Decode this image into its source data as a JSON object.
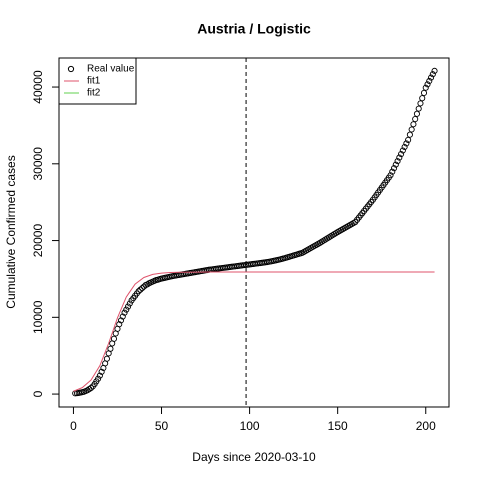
{
  "chart_data": {
    "type": "scatter",
    "title": "Austria / Logistic",
    "x_label": "Days since 2020-03-10",
    "y_label": "Cumulative Confirmed cases",
    "xlim": [
      -8.2,
      213.2
    ],
    "ylim": [
      -1684,
      43784
    ],
    "xticks": [
      0,
      50,
      100,
      150,
      200
    ],
    "yticks": [
      0,
      10000,
      20000,
      30000,
      40000
    ],
    "vline": 98,
    "legend": "top-left",
    "series": [
      {
        "name": "Real value",
        "color": "#000000",
        "marker": "circle",
        "x": [
          1,
          2,
          3,
          4,
          5,
          6,
          7,
          8,
          9,
          10,
          11,
          12,
          13,
          14,
          15,
          16,
          17,
          18,
          19,
          20,
          21,
          22,
          23,
          24,
          25,
          26,
          27,
          28,
          29,
          30,
          31,
          32,
          33,
          34,
          35,
          36,
          37,
          38,
          39,
          40,
          41,
          42,
          43,
          44,
          45,
          46,
          47,
          48,
          49,
          50,
          51,
          52,
          53,
          54,
          55,
          56,
          57,
          58,
          59,
          60,
          61,
          62,
          63,
          64,
          65,
          66,
          67,
          68,
          69,
          70,
          71,
          72,
          73,
          74,
          75,
          76,
          77,
          78,
          79,
          80,
          81,
          82,
          83,
          84,
          85,
          86,
          87,
          88,
          89,
          90,
          91,
          92,
          93,
          94,
          95,
          96,
          97,
          98,
          99,
          100,
          101,
          102,
          103,
          104,
          105,
          106,
          107,
          108,
          109,
          110,
          111,
          112,
          113,
          114,
          115,
          116,
          117,
          118,
          119,
          120,
          121,
          122,
          123,
          124,
          125,
          126,
          127,
          128,
          129,
          130,
          131,
          132,
          133,
          134,
          135,
          136,
          137,
          138,
          139,
          140,
          141,
          142,
          143,
          144,
          145,
          146,
          147,
          148,
          149,
          150,
          151,
          152,
          153,
          154,
          155,
          156,
          157,
          158,
          159,
          160,
          161,
          162,
          163,
          164,
          165,
          166,
          167,
          168,
          169,
          170,
          171,
          172,
          173,
          174,
          175,
          176,
          177,
          178,
          179,
          180,
          181,
          182,
          183,
          184,
          185,
          186,
          187,
          188,
          189,
          190,
          191,
          192,
          193,
          194,
          195,
          196,
          197,
          198,
          199,
          200,
          201,
          202,
          203,
          204,
          205
        ],
        "values": [
          100,
          120,
          150,
          200,
          250,
          300,
          400,
          500,
          650,
          800,
          1000,
          1300,
          1650,
          2000,
          2400,
          2900,
          3400,
          4000,
          4600,
          5300,
          5900,
          6600,
          7200,
          7900,
          8500,
          9100,
          9600,
          10100,
          10600,
          11000,
          11400,
          11800,
          12200,
          12500,
          12800,
          13100,
          13400,
          13600,
          13800,
          14000,
          14200,
          14300,
          14450,
          14550,
          14650,
          14750,
          14850,
          14900,
          14980,
          15050,
          15100,
          15150,
          15200,
          15250,
          15300,
          15350,
          15400,
          15440,
          15480,
          15520,
          15560,
          15600,
          15640,
          15680,
          15720,
          15760,
          15800,
          15840,
          15880,
          15920,
          15960,
          16000,
          16040,
          16080,
          16120,
          16160,
          16200,
          16230,
          16260,
          16290,
          16320,
          16350,
          16380,
          16410,
          16440,
          16470,
          16500,
          16530,
          16560,
          16590,
          16620,
          16650,
          16680,
          16710,
          16740,
          16770,
          16800,
          16830,
          16860,
          16890,
          16920,
          16950,
          16980,
          17010,
          17040,
          17070,
          17100,
          17130,
          17160,
          17200,
          17240,
          17280,
          17330,
          17380,
          17430,
          17480,
          17530,
          17590,
          17650,
          17710,
          17780,
          17850,
          17920,
          17990,
          18060,
          18130,
          18200,
          18270,
          18340,
          18410,
          18540,
          18670,
          18800,
          18930,
          19060,
          19190,
          19320,
          19450,
          19580,
          19710,
          19850,
          19990,
          20130,
          20270,
          20410,
          20550,
          20690,
          20830,
          20970,
          21110,
          21240,
          21370,
          21500,
          21630,
          21760,
          21890,
          22020,
          22150,
          22280,
          22410,
          22700,
          22990,
          23280,
          23570,
          23860,
          24150,
          24440,
          24730,
          25020,
          25310,
          25630,
          25950,
          26270,
          26590,
          26910,
          27230,
          27550,
          27870,
          28190,
          28510,
          28970,
          29430,
          29890,
          30350,
          30810,
          31270,
          31730,
          32190,
          32650,
          33110,
          33790,
          34470,
          35150,
          35830,
          36510,
          37190,
          37870,
          38550,
          39230,
          39910,
          40350,
          40790,
          41230,
          41670,
          42110
        ]
      },
      {
        "name": "fit1",
        "color": "#df536b",
        "marker": "line",
        "x": [
          0,
          5,
          10,
          15,
          20,
          25,
          30,
          35,
          40,
          45,
          50,
          55,
          60,
          70,
          80,
          100,
          150,
          205
        ],
        "values": [
          370,
          837,
          1830,
          3706,
          6620,
          9940,
          12650,
          14330,
          15190,
          15590,
          15760,
          15840,
          15875,
          15895,
          15900,
          15900,
          15900,
          15900
        ]
      },
      {
        "name": "fit2",
        "color": "#61d04f",
        "marker": "line",
        "x": [],
        "values": []
      }
    ]
  }
}
